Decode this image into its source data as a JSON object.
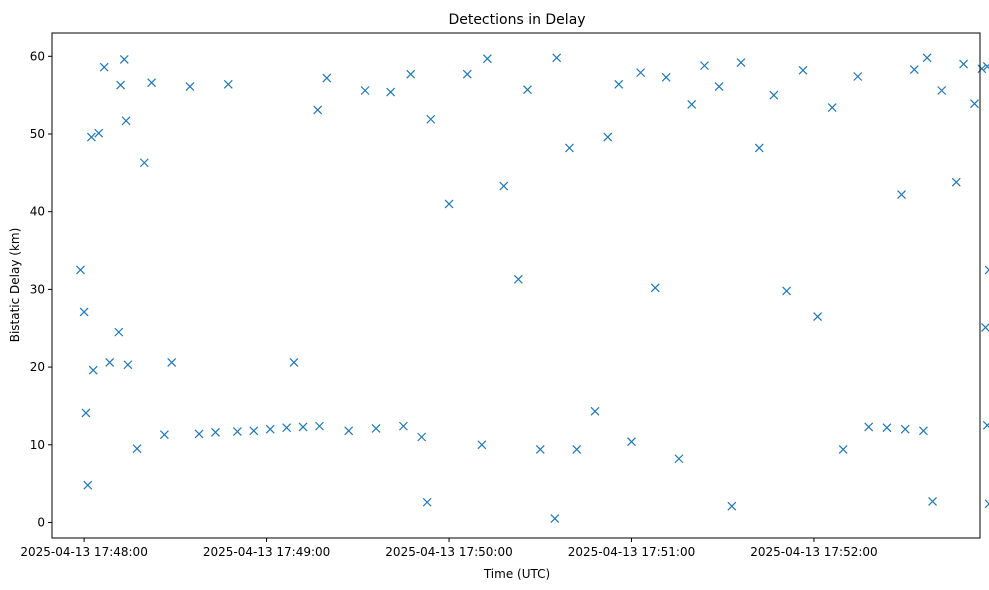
{
  "chart_data": {
    "type": "scatter",
    "title": "Detections in Delay",
    "xlabel": "Time (UTC)",
    "ylabel": "Bistatic Delay (km)",
    "marker": "x",
    "color": "#1f77b4",
    "xlim": [
      -0.176,
      4.91
    ],
    "ylim": [
      -2.0,
      63.0
    ],
    "xticks": [
      {
        "value": 0,
        "label": "2025-04-13 17:48:00"
      },
      {
        "value": 1,
        "label": "2025-04-13 17:49:00"
      },
      {
        "value": 2,
        "label": "2025-04-13 17:50:00"
      },
      {
        "value": 3,
        "label": "2025-04-13 17:51:00"
      },
      {
        "value": 4,
        "label": "2025-04-13 17:52:00"
      }
    ],
    "x_units": "minutes after 2025-04-13 17:48:00",
    "yticks": [
      0,
      10,
      20,
      30,
      40,
      50,
      60
    ],
    "grid": false,
    "sample_points": [
      {
        "x": -0.02,
        "y": 32.5
      },
      {
        "x": 0.0,
        "y": 27.1
      },
      {
        "x": 0.01,
        "y": 14.1
      },
      {
        "x": 0.02,
        "y": 4.8
      },
      {
        "x": 0.04,
        "y": 49.6
      },
      {
        "x": 0.05,
        "y": 19.6
      },
      {
        "x": 0.08,
        "y": 50.1
      },
      {
        "x": 0.11,
        "y": 58.6
      },
      {
        "x": 0.14,
        "y": 20.6
      },
      {
        "x": 0.19,
        "y": 24.5
      },
      {
        "x": 0.2,
        "y": 56.3
      },
      {
        "x": 0.22,
        "y": 59.6
      },
      {
        "x": 0.23,
        "y": 51.7
      },
      {
        "x": 0.24,
        "y": 20.3
      },
      {
        "x": 0.29,
        "y": 9.5
      },
      {
        "x": 0.33,
        "y": 46.3
      },
      {
        "x": 0.37,
        "y": 56.6
      },
      {
        "x": 0.44,
        "y": 11.3
      },
      {
        "x": 0.48,
        "y": 20.6
      },
      {
        "x": 0.58,
        "y": 56.1
      },
      {
        "x": 0.63,
        "y": 11.4
      },
      {
        "x": 0.72,
        "y": 11.6
      },
      {
        "x": 0.79,
        "y": 56.4
      },
      {
        "x": 0.84,
        "y": 11.7
      },
      {
        "x": 0.93,
        "y": 11.8
      },
      {
        "x": 1.02,
        "y": 12.0
      },
      {
        "x": 1.11,
        "y": 12.2
      },
      {
        "x": 1.2,
        "y": 12.3
      },
      {
        "x": 1.29,
        "y": 12.4
      },
      {
        "x": 1.15,
        "y": 20.6
      },
      {
        "x": 1.28,
        "y": 53.1
      },
      {
        "x": 1.33,
        "y": 57.2
      },
      {
        "x": 1.45,
        "y": 11.8
      },
      {
        "x": 1.54,
        "y": 55.6
      },
      {
        "x": 1.6,
        "y": 12.1
      },
      {
        "x": 1.68,
        "y": 55.4
      },
      {
        "x": 1.75,
        "y": 12.4
      },
      {
        "x": 1.79,
        "y": 57.7
      },
      {
        "x": 1.85,
        "y": 11.0
      },
      {
        "x": 1.9,
        "y": 51.9
      },
      {
        "x": 2.0,
        "y": 41.0
      },
      {
        "x": 1.88,
        "y": 2.6
      },
      {
        "x": 2.1,
        "y": 57.7
      },
      {
        "x": 2.18,
        "y": 10.0
      },
      {
        "x": 2.21,
        "y": 59.7
      },
      {
        "x": 2.3,
        "y": 43.3
      },
      {
        "x": 2.38,
        "y": 31.3
      },
      {
        "x": 2.43,
        "y": 55.7
      },
      {
        "x": 2.5,
        "y": 9.4
      },
      {
        "x": 2.58,
        "y": 0.5
      },
      {
        "x": 2.59,
        "y": 59.8
      },
      {
        "x": 2.66,
        "y": 48.2
      },
      {
        "x": 2.7,
        "y": 9.4
      },
      {
        "x": 2.8,
        "y": 14.3
      },
      {
        "x": 2.87,
        "y": 49.6
      },
      {
        "x": 2.93,
        "y": 56.4
      },
      {
        "x": 3.0,
        "y": 10.4
      },
      {
        "x": 3.05,
        "y": 57.9
      },
      {
        "x": 3.13,
        "y": 30.2
      },
      {
        "x": 3.19,
        "y": 57.3
      },
      {
        "x": 3.26,
        "y": 8.2
      },
      {
        "x": 3.33,
        "y": 53.8
      },
      {
        "x": 3.4,
        "y": 58.8
      },
      {
        "x": 3.48,
        "y": 56.1
      },
      {
        "x": 3.55,
        "y": 2.1
      },
      {
        "x": 3.6,
        "y": 59.2
      },
      {
        "x": 3.7,
        "y": 48.2
      },
      {
        "x": 3.78,
        "y": 55.0
      },
      {
        "x": 3.85,
        "y": 29.8
      },
      {
        "x": 3.94,
        "y": 58.2
      },
      {
        "x": 4.02,
        "y": 26.5
      },
      {
        "x": 4.1,
        "y": 53.4
      },
      {
        "x": 4.16,
        "y": 9.4
      },
      {
        "x": 4.24,
        "y": 57.4
      },
      {
        "x": 4.3,
        "y": 12.3
      },
      {
        "x": 4.4,
        "y": 12.2
      },
      {
        "x": 4.5,
        "y": 12.0
      },
      {
        "x": 4.6,
        "y": 11.8
      },
      {
        "x": 4.55,
        "y": 58.3
      },
      {
        "x": 4.48,
        "y": 42.2
      },
      {
        "x": 4.62,
        "y": 59.8
      },
      {
        "x": 4.65,
        "y": 2.7
      },
      {
        "x": 4.7,
        "y": 55.6
      },
      {
        "x": 4.78,
        "y": 43.8
      },
      {
        "x": 4.82,
        "y": 59.0
      },
      {
        "x": 4.88,
        "y": 53.9
      },
      {
        "x": 4.92,
        "y": 58.4
      },
      {
        "x": 4.95,
        "y": 58.7
      },
      {
        "x": 4.96,
        "y": 32.5
      },
      {
        "x": 4.96,
        "y": 2.4
      },
      {
        "x": 4.95,
        "y": 12.5
      },
      {
        "x": 4.94,
        "y": 25.1
      }
    ]
  }
}
